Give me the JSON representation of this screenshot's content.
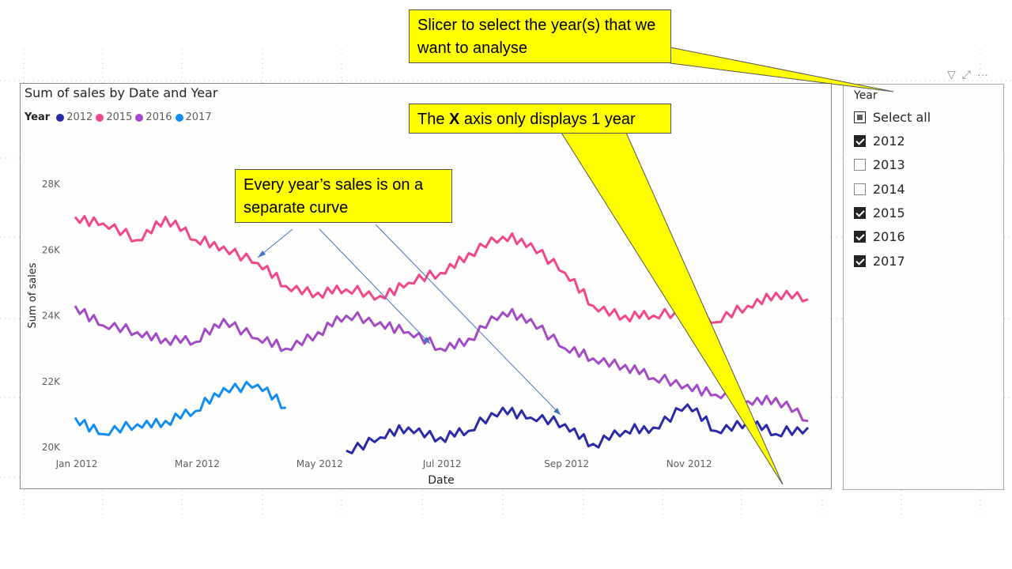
{
  "visual": {
    "title": "Sum of sales by Date and Year",
    "legend_title": "Year",
    "legend": [
      {
        "name": "2012",
        "color": "#2b2ba8"
      },
      {
        "name": "2015",
        "color": "#f0478a"
      },
      {
        "name": "2016",
        "color": "#a24bc4"
      },
      {
        "name": "2017",
        "color": "#118df0"
      }
    ]
  },
  "slicer": {
    "header": "Year",
    "select_all": "Select all",
    "items": [
      {
        "label": "2012",
        "checked": true
      },
      {
        "label": "2013",
        "checked": false
      },
      {
        "label": "2014",
        "checked": false
      },
      {
        "label": "2015",
        "checked": true
      },
      {
        "label": "2016",
        "checked": true
      },
      {
        "label": "2017",
        "checked": true
      }
    ]
  },
  "callouts": {
    "slicer_note": "Slicer to select the year(s) that we want to analyse",
    "xaxis_note_prefix": "The ",
    "xaxis_note_bold": "X",
    "xaxis_note_suffix": " axis only displays 1 year",
    "curve_note": "Every year’s sales is on a separate curve"
  },
  "chart_data": {
    "type": "line",
    "title": "Sum of sales by Date and Year",
    "xlabel": "Date",
    "ylabel": "Sum of sales",
    "x_ticks": [
      "Jan 2012",
      "Mar 2012",
      "May 2012",
      "Jul 2012",
      "Sep 2012",
      "Nov 2012"
    ],
    "y_ticks": [
      "20K",
      "22K",
      "24K",
      "26K",
      "28K"
    ],
    "ylim": [
      20000,
      28000
    ],
    "x_domain": [
      "2012-01-01",
      "2012-12-31"
    ],
    "series": [
      {
        "name": "2015",
        "color": "#f0478a",
        "x": [
          "2012-01-01",
          "2012-01-15",
          "2012-02-01",
          "2012-02-15",
          "2012-03-01",
          "2012-03-15",
          "2012-04-01",
          "2012-04-15",
          "2012-05-01",
          "2012-05-15",
          "2012-06-01",
          "2012-06-15",
          "2012-07-01",
          "2012-07-15",
          "2012-08-01",
          "2012-08-15",
          "2012-09-01",
          "2012-09-15",
          "2012-10-01",
          "2012-10-15",
          "2012-11-01",
          "2012-11-15",
          "2012-12-01",
          "2012-12-15",
          "2012-12-31"
        ],
        "values": [
          27000,
          26800,
          26300,
          27000,
          26300,
          26100,
          25600,
          24900,
          24700,
          24800,
          24600,
          25000,
          25300,
          25900,
          26400,
          26200,
          25300,
          24300,
          24000,
          24000,
          24100,
          23800,
          24300,
          24700,
          24500
        ]
      },
      {
        "name": "2016",
        "color": "#a24bc4",
        "x": [
          "2012-01-01",
          "2012-01-15",
          "2012-02-01",
          "2012-02-15",
          "2012-03-01",
          "2012-03-15",
          "2012-04-01",
          "2012-04-15",
          "2012-05-01",
          "2012-05-15",
          "2012-06-01",
          "2012-06-15",
          "2012-07-01",
          "2012-07-15",
          "2012-08-01",
          "2012-08-15",
          "2012-09-01",
          "2012-09-15",
          "2012-10-01",
          "2012-10-15",
          "2012-11-01",
          "2012-11-15",
          "2012-12-01",
          "2012-12-15",
          "2012-12-31"
        ],
        "values": [
          24300,
          23700,
          23500,
          23300,
          23200,
          23900,
          23300,
          23000,
          23500,
          24000,
          23800,
          23500,
          23000,
          23300,
          24100,
          23900,
          23000,
          22700,
          22500,
          22100,
          21900,
          21600,
          21400,
          21500,
          20800
        ]
      },
      {
        "name": "2017",
        "color": "#118df0",
        "x": [
          "2012-01-01",
          "2012-01-15",
          "2012-02-01",
          "2012-02-15",
          "2012-03-01",
          "2012-03-15",
          "2012-04-01",
          "2012-04-15"
        ],
        "values": [
          20900,
          20400,
          20700,
          20800,
          21100,
          21800,
          21900,
          21200
        ]
      },
      {
        "name": "2012",
        "color": "#2b2ba8",
        "x": [
          "2012-05-15",
          "2012-06-01",
          "2012-06-15",
          "2012-07-01",
          "2012-07-15",
          "2012-08-01",
          "2012-08-15",
          "2012-09-01",
          "2012-09-15",
          "2012-10-01",
          "2012-10-15",
          "2012-11-01",
          "2012-11-15",
          "2012-12-01",
          "2012-12-15",
          "2012-12-31"
        ],
        "values": [
          19900,
          20300,
          20600,
          20300,
          20500,
          21200,
          20900,
          20700,
          20100,
          20500,
          20600,
          21300,
          20500,
          20800,
          20400,
          20600
        ]
      }
    ],
    "grid": false,
    "legend_position": "top-left"
  }
}
